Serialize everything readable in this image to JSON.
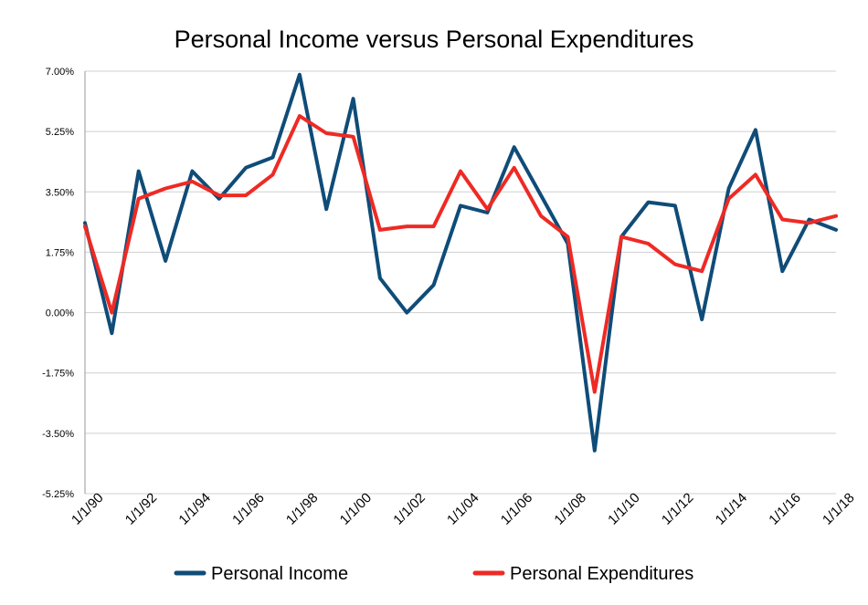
{
  "chart_data": {
    "type": "line",
    "title": "Personal Income versus Personal Expenditures",
    "xlabel": "",
    "ylabel": "",
    "ylim": [
      -5.25,
      7.0
    ],
    "ytick_labels": [
      "7.00%",
      "5.25%",
      "3.50%",
      "1.75%",
      "0.00%",
      "-1.75%",
      "-3.50%",
      "-5.25%"
    ],
    "ytick_values": [
      7.0,
      5.25,
      3.5,
      1.75,
      0.0,
      -1.75,
      -3.5,
      -5.25
    ],
    "xtick_labels": [
      "1/1/90",
      "1/1/92",
      "1/1/94",
      "1/1/96",
      "1/1/98",
      "1/1/00",
      "1/1/02",
      "1/1/04",
      "1/1/06",
      "1/1/08",
      "1/1/10",
      "1/1/12",
      "1/1/14",
      "1/1/16",
      "1/1/18"
    ],
    "x_dates": [
      "1990-01",
      "1991-01",
      "1992-01",
      "1993-01",
      "1994-01",
      "1995-01",
      "1996-01",
      "1997-01",
      "1998-01",
      "1999-01",
      "2000-01",
      "2001-01",
      "2002-01",
      "2003-01",
      "2004-01",
      "2005-01",
      "2006-01",
      "2007-01",
      "2008-01",
      "2009-01",
      "2010-01",
      "2011-01",
      "2012-01",
      "2013-01",
      "2014-01",
      "2015-01",
      "2016-01",
      "2017-01",
      "2018-01"
    ],
    "grid": true,
    "legend": "bottom",
    "series": [
      {
        "name": "Personal Income",
        "color": "#0f4c78",
        "values": [
          2.6,
          -0.6,
          4.1,
          1.5,
          4.1,
          3.3,
          4.2,
          4.5,
          6.9,
          3.0,
          6.2,
          1.0,
          0.0,
          0.8,
          3.1,
          2.9,
          4.8,
          3.4,
          2.0,
          -4.0,
          2.2,
          3.2,
          3.1,
          -0.2,
          3.6,
          5.3,
          1.2,
          2.7,
          2.4
        ]
      },
      {
        "name": "Personal Expenditures",
        "color": "#ee2a24",
        "values": [
          2.5,
          0.0,
          3.3,
          3.6,
          3.8,
          3.4,
          3.4,
          4.0,
          5.7,
          5.2,
          5.1,
          2.4,
          2.5,
          2.5,
          4.1,
          3.0,
          4.2,
          2.8,
          2.2,
          -2.3,
          2.2,
          2.0,
          1.4,
          1.2,
          3.3,
          4.0,
          2.7,
          2.6,
          2.8
        ]
      }
    ]
  }
}
